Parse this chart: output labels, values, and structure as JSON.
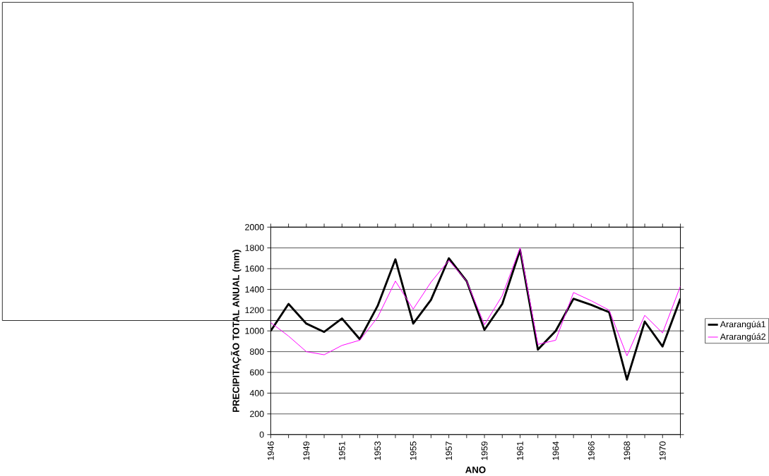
{
  "chart_data": {
    "type": "line",
    "xlabel": "ANO",
    "ylabel": "PRECIPITAÇÃO TOTAL ANUAL (mm)",
    "categories": [
      "1946",
      null,
      "1949",
      null,
      "1951",
      null,
      "1953",
      null,
      "1955",
      null,
      "1957",
      null,
      "1959",
      null,
      "1961",
      null,
      "1964",
      null,
      "1966",
      null,
      "1968",
      null,
      "1970",
      null
    ],
    "series": [
      {
        "name": "Ararangúá1",
        "color": "#000000",
        "values": [
          1000,
          1260,
          1070,
          990,
          1120,
          920,
          1240,
          1690,
          1070,
          1300,
          1700,
          1480,
          1010,
          1260,
          1780,
          820,
          1000,
          1310,
          1250,
          1180,
          530,
          1090,
          850,
          1310
        ]
      },
      {
        "name": "Ararangúá2",
        "color": "#ff00ff",
        "values": [
          1080,
          950,
          800,
          770,
          860,
          910,
          1130,
          1480,
          1210,
          1470,
          1680,
          1480,
          1060,
          1340,
          1800,
          870,
          910,
          1370,
          1290,
          1200,
          760,
          1150,
          980,
          1430
        ]
      }
    ],
    "ylim": [
      0,
      2000
    ],
    "yticks": [
      0,
      200,
      400,
      600,
      800,
      1000,
      1200,
      1400,
      1600,
      1800,
      2000
    ],
    "grid": "y",
    "legend": "right",
    "marker": "none"
  }
}
